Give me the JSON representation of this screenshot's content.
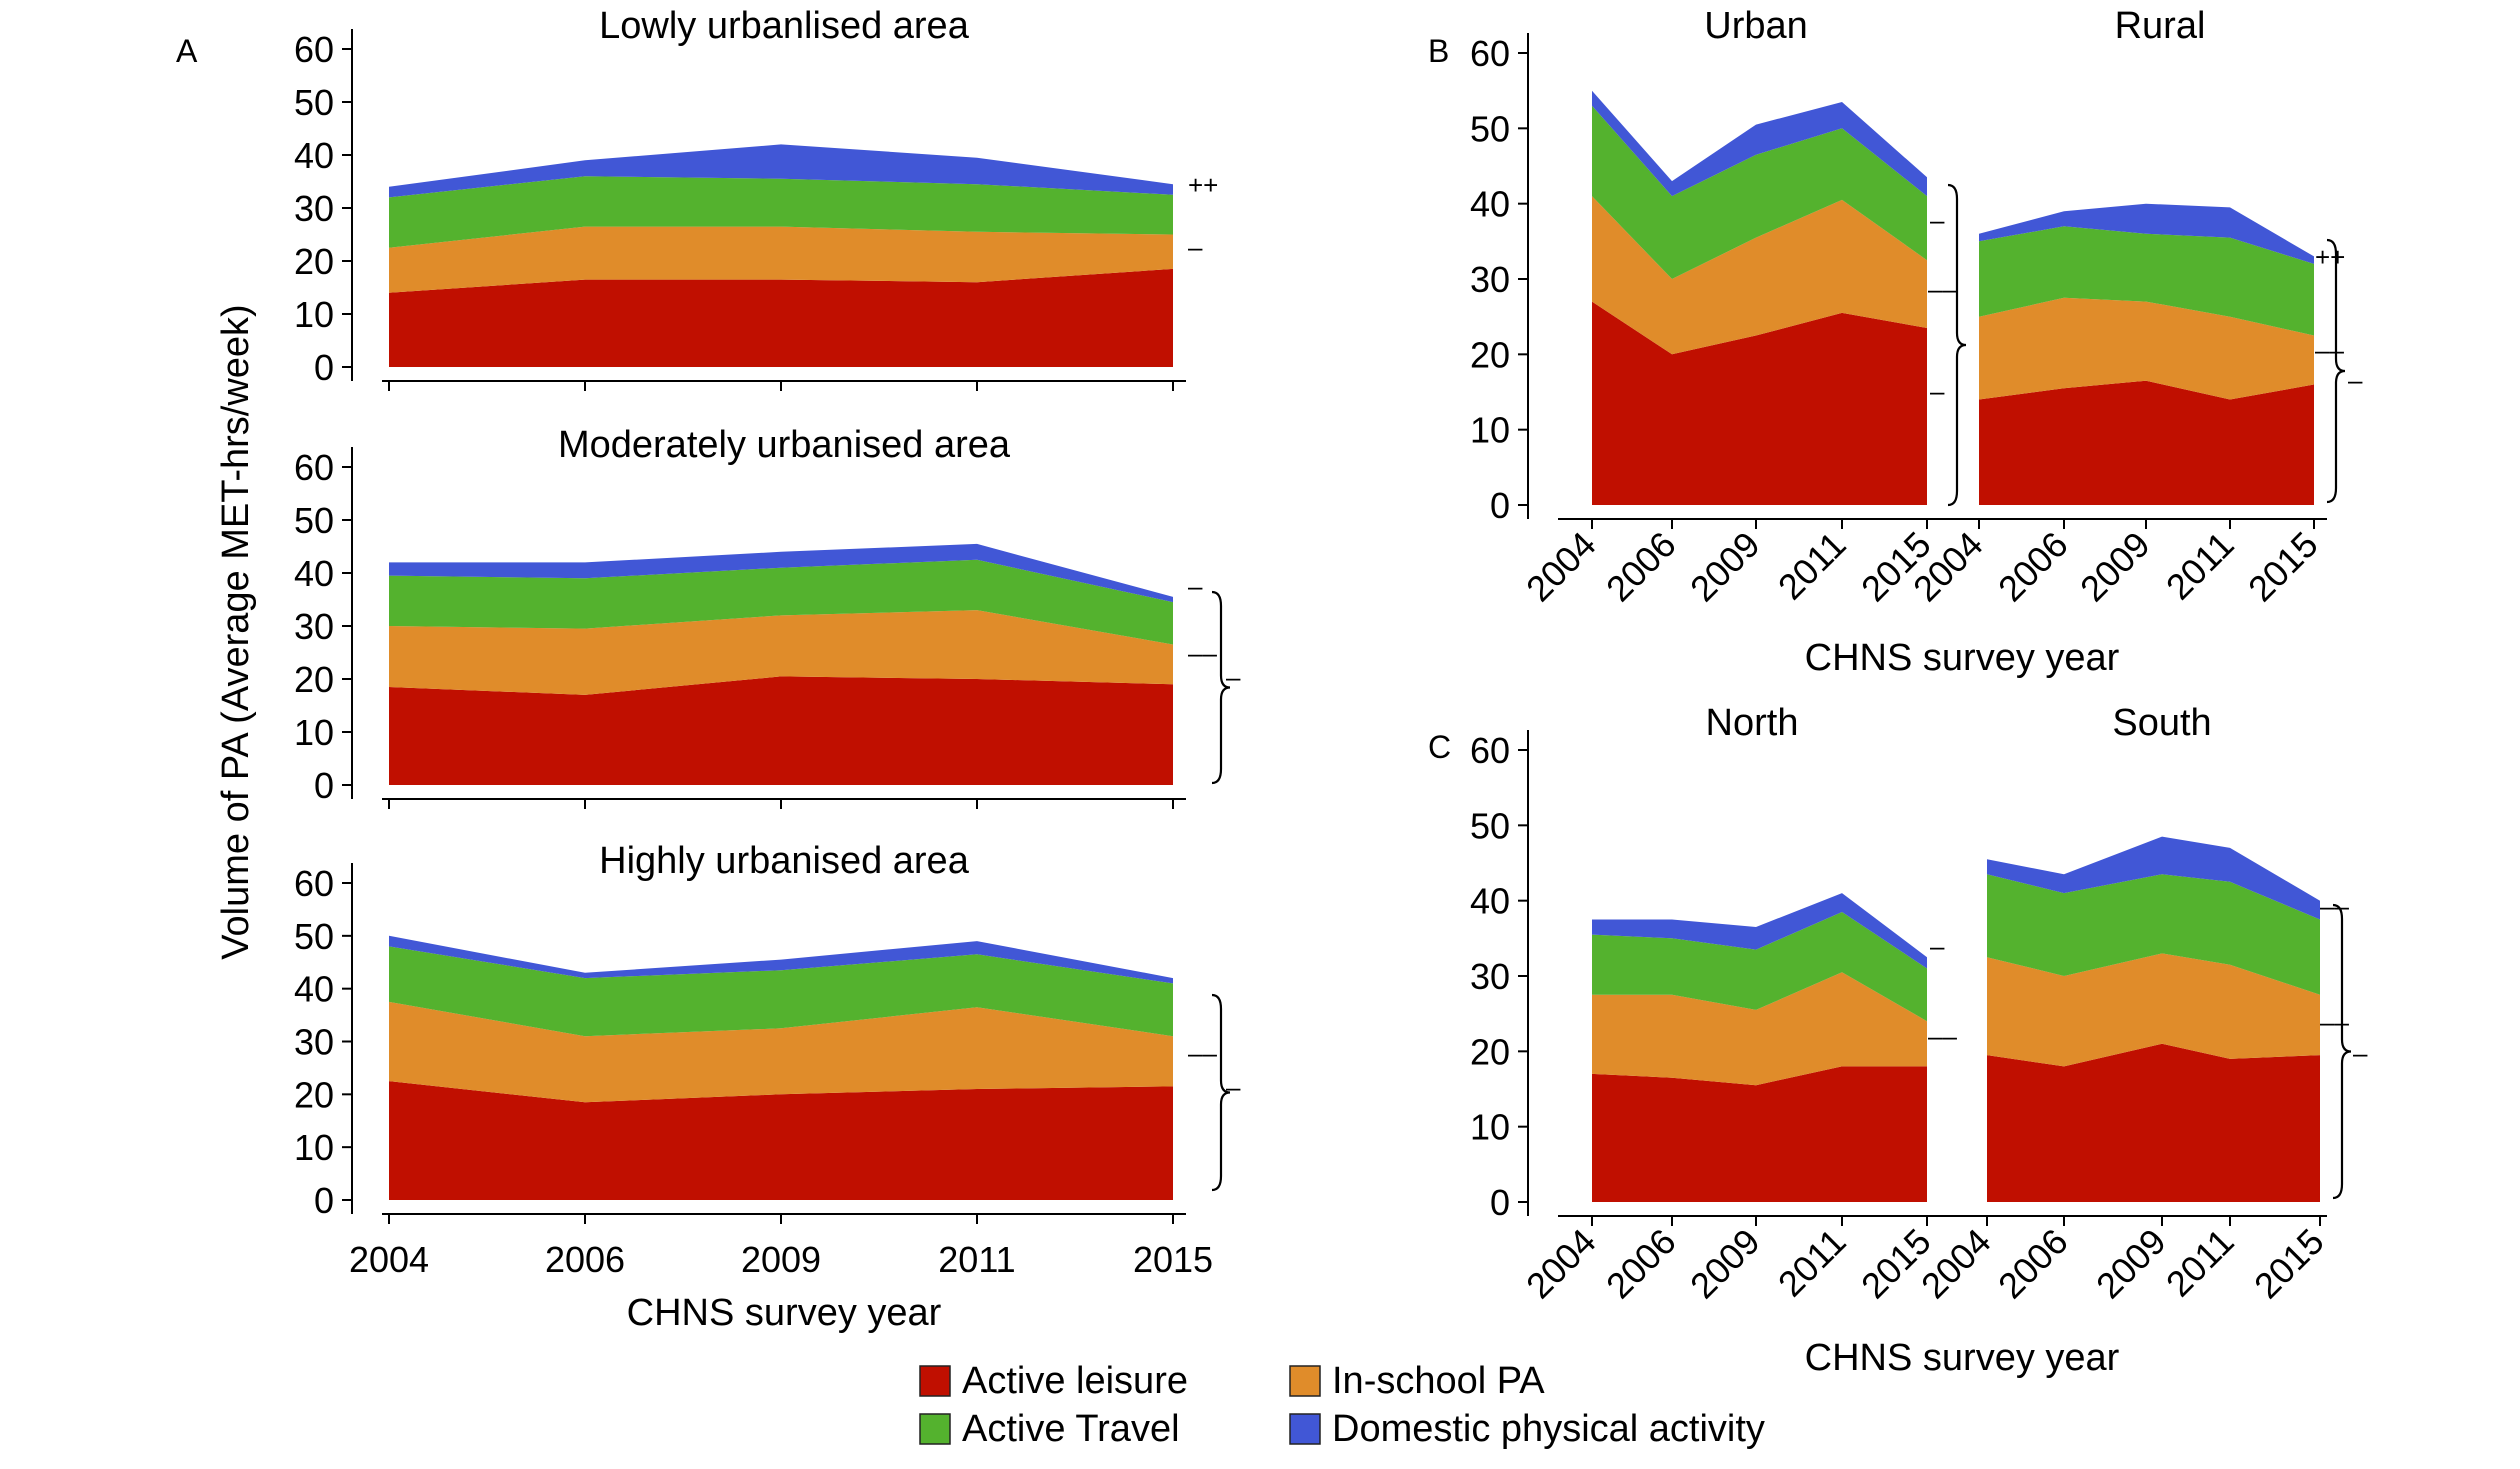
{
  "colors": {
    "active_leisure": "#c00f00",
    "in_school_pa": "#e08c2a",
    "active_travel": "#54b22e",
    "domestic_pa": "#4157d6"
  },
  "legend": {
    "items": [
      {
        "key": "active_leisure",
        "label": "Active leisure"
      },
      {
        "key": "in_school_pa",
        "label": "In-school PA"
      },
      {
        "key": "active_travel",
        "label": "Active Travel"
      },
      {
        "key": "domestic_pa",
        "label": "Domestic physical activity"
      }
    ]
  },
  "panels": {
    "A": {
      "letter": "A",
      "ylabel": "Volume of PA (Average MET-hrs/week)",
      "xlabel": "CHNS survey year"
    },
    "B": {
      "letter": "B",
      "xlabel": "CHNS survey year"
    },
    "C": {
      "letter": "C",
      "xlabel": "CHNS survey year"
    }
  },
  "chart_data": [
    {
      "type": "area",
      "panel": "A",
      "title": "Lowly urbanlised area",
      "x": [
        "2004",
        "2006",
        "2009",
        "2011",
        "2015"
      ],
      "ylim": [
        0,
        60
      ],
      "yticks": [
        "0",
        "10",
        "20",
        "30",
        "40",
        "50",
        "60"
      ],
      "series": [
        {
          "name": "Active leisure",
          "values": [
            14,
            16.5,
            16.5,
            16,
            18.5
          ]
        },
        {
          "name": "In-school PA",
          "values": [
            8.5,
            10,
            10,
            9.5,
            6.5
          ]
        },
        {
          "name": "Active Travel",
          "values": [
            9.5,
            9.5,
            9,
            9,
            7.5
          ]
        },
        {
          "name": "Domestic physical activity",
          "values": [
            2,
            3,
            6.5,
            5,
            2
          ]
        }
      ],
      "annotations": [
        "++",
        "–"
      ]
    },
    {
      "type": "area",
      "panel": "A",
      "title": "Moderately urbanised area",
      "x": [
        "2004",
        "2006",
        "2009",
        "2011",
        "2015"
      ],
      "ylim": [
        0,
        60
      ],
      "yticks": [
        "0",
        "10",
        "20",
        "30",
        "40",
        "50",
        "60"
      ],
      "series": [
        {
          "name": "Active leisure",
          "values": [
            18.5,
            17,
            20.5,
            20,
            19
          ]
        },
        {
          "name": "In-school PA",
          "values": [
            11.5,
            12.5,
            11.5,
            13,
            7.5
          ]
        },
        {
          "name": "Active Travel",
          "values": [
            9.5,
            9.5,
            9,
            9.5,
            8
          ]
        },
        {
          "name": "Domestic physical activity",
          "values": [
            2.5,
            3,
            3,
            3,
            1
          ]
        }
      ],
      "annotations": [
        "–",
        "––",
        "–"
      ]
    },
    {
      "type": "area",
      "panel": "A",
      "title": "Highly urbanised area",
      "x": [
        "2004",
        "2006",
        "2009",
        "2011",
        "2015"
      ],
      "ylim": [
        0,
        60
      ],
      "yticks": [
        "0",
        "10",
        "20",
        "30",
        "40",
        "50",
        "60"
      ],
      "series": [
        {
          "name": "Active leisure",
          "values": [
            22.5,
            18.5,
            20,
            21,
            21.5
          ]
        },
        {
          "name": "In-school PA",
          "values": [
            15,
            12.5,
            12.5,
            15.5,
            9.5
          ]
        },
        {
          "name": "Active Travel",
          "values": [
            10.5,
            11,
            11,
            10,
            10
          ]
        },
        {
          "name": "Domestic physical activity",
          "values": [
            2,
            1,
            2,
            2.5,
            1
          ]
        }
      ],
      "annotations": [
        "––",
        "–"
      ]
    },
    {
      "type": "area",
      "panel": "B",
      "title": "Urban",
      "x": [
        "2004",
        "2006",
        "2009",
        "2011",
        "2015"
      ],
      "ylim": [
        0,
        60
      ],
      "yticks": [
        "0",
        "10",
        "20",
        "30",
        "40",
        "50",
        "60"
      ],
      "series": [
        {
          "name": "Active leisure",
          "values": [
            27,
            20,
            22.5,
            25.5,
            23.5
          ]
        },
        {
          "name": "In-school PA",
          "values": [
            14,
            10,
            13,
            15,
            9
          ]
        },
        {
          "name": "Active Travel",
          "values": [
            12,
            11,
            11,
            9.5,
            8.5
          ]
        },
        {
          "name": "Domestic physical activity",
          "values": [
            2,
            2,
            4,
            3.5,
            2.5
          ]
        }
      ],
      "annotations": [
        "–",
        "––",
        "–"
      ]
    },
    {
      "type": "area",
      "panel": "B",
      "title": "Rural",
      "x": [
        "2004",
        "2006",
        "2009",
        "2011",
        "2015"
      ],
      "ylim": [
        0,
        60
      ],
      "yticks": [
        "0",
        "10",
        "20",
        "30",
        "40",
        "50",
        "60"
      ],
      "series": [
        {
          "name": "Active leisure",
          "values": [
            14,
            15.5,
            16.5,
            14,
            16
          ]
        },
        {
          "name": "In-school PA",
          "values": [
            11,
            12,
            10.5,
            11,
            6.5
          ]
        },
        {
          "name": "Active Travel",
          "values": [
            10,
            9.5,
            9,
            10.5,
            9.5
          ]
        },
        {
          "name": "Domestic physical activity",
          "values": [
            1,
            2,
            4,
            4,
            1
          ]
        }
      ],
      "annotations": [
        "++",
        "––",
        "–"
      ]
    },
    {
      "type": "area",
      "panel": "C",
      "title": "North",
      "x": [
        "2004",
        "2006",
        "2009",
        "2011",
        "2015"
      ],
      "ylim": [
        0,
        60
      ],
      "yticks": [
        "0",
        "10",
        "20",
        "30",
        "40",
        "50",
        "60"
      ],
      "series": [
        {
          "name": "Active leisure",
          "values": [
            17,
            16.5,
            15.5,
            18,
            18
          ]
        },
        {
          "name": "In-school PA",
          "values": [
            10.5,
            11,
            10,
            12.5,
            6
          ]
        },
        {
          "name": "Active Travel",
          "values": [
            8,
            7.5,
            8,
            8,
            7
          ]
        },
        {
          "name": "Domestic physical activity",
          "values": [
            2,
            2.5,
            3,
            2.5,
            1.5
          ]
        }
      ],
      "annotations": [
        "–",
        "––"
      ]
    },
    {
      "type": "area",
      "panel": "C",
      "title": "South",
      "x": [
        "2004",
        "2006",
        "2009",
        "2011",
        "2015"
      ],
      "ylim": [
        0,
        60
      ],
      "yticks": [
        "0",
        "10",
        "20",
        "30",
        "40",
        "50",
        "60"
      ],
      "series": [
        {
          "name": "Active leisure",
          "values": [
            19.5,
            18,
            21,
            19,
            19.5
          ]
        },
        {
          "name": "In-school PA",
          "values": [
            13,
            12,
            12,
            12.5,
            8
          ]
        },
        {
          "name": "Active Travel",
          "values": [
            11,
            11,
            10.5,
            11,
            10
          ]
        },
        {
          "name": "Domestic physical activity",
          "values": [
            2,
            2.5,
            5,
            4.5,
            2.5
          ]
        }
      ],
      "annotations": [
        "––",
        "––",
        "–"
      ]
    }
  ]
}
